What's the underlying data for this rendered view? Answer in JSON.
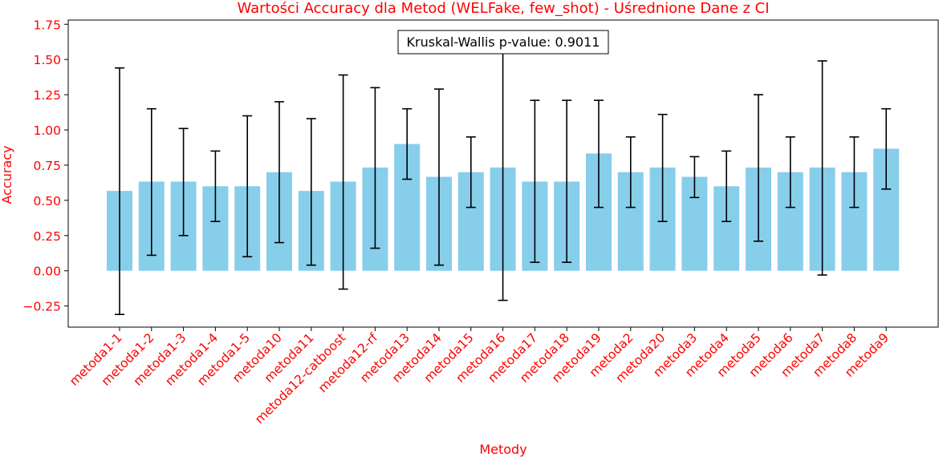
{
  "chart_data": {
    "type": "bar",
    "title": "Wartości Accuracy dla Metod (WELFake, few_shot) - Uśrednione Dane z CI",
    "xlabel": "Metody",
    "ylabel": "Accuracy",
    "ylim": [
      -0.4,
      1.78
    ],
    "yticks": [
      -0.25,
      0.0,
      0.25,
      0.5,
      0.75,
      1.0,
      1.25,
      1.5,
      1.75
    ],
    "ytick_labels": [
      "−0.25",
      "0.00",
      "0.25",
      "0.50",
      "0.75",
      "1.00",
      "1.25",
      "1.50",
      "1.75"
    ],
    "categories": [
      "metoda1-1",
      "metoda1-2",
      "metoda1-3",
      "metoda1-4",
      "metoda1-5",
      "metoda10",
      "metoda11",
      "metoda12-catboost",
      "metoda12-rf",
      "metoda13",
      "metoda14",
      "metoda15",
      "metoda16",
      "metoda17",
      "metoda18",
      "metoda19",
      "metoda2",
      "metoda20",
      "metoda3",
      "metoda4",
      "metoda5",
      "metoda6",
      "metoda7",
      "metoda8",
      "metoda9"
    ],
    "values": [
      0.567,
      0.633,
      0.633,
      0.6,
      0.6,
      0.7,
      0.567,
      0.633,
      0.733,
      0.9,
      0.667,
      0.7,
      0.733,
      0.633,
      0.633,
      0.833,
      0.7,
      0.733,
      0.667,
      0.6,
      0.733,
      0.7,
      0.733,
      0.7,
      0.867
    ],
    "ci_lower": [
      -0.31,
      0.11,
      0.25,
      0.35,
      0.1,
      0.2,
      0.04,
      -0.13,
      0.16,
      0.65,
      0.04,
      0.45,
      -0.21,
      0.06,
      0.06,
      0.45,
      0.45,
      0.35,
      0.52,
      0.35,
      0.21,
      0.45,
      -0.03,
      0.45,
      0.58
    ],
    "ci_upper": [
      1.44,
      1.15,
      1.01,
      0.85,
      1.1,
      1.2,
      1.08,
      1.39,
      1.3,
      1.15,
      1.29,
      0.95,
      1.68,
      1.21,
      1.21,
      1.21,
      0.95,
      1.11,
      0.81,
      0.85,
      1.25,
      0.95,
      1.49,
      0.95,
      1.15
    ],
    "bar_color": "#87ceeb",
    "errorbar_color": "#000000",
    "text_color": "#ff0000",
    "annotation": "Kruskal-Wallis p-value: 0.9011",
    "annotation_position": "top-center",
    "grid": false
  }
}
